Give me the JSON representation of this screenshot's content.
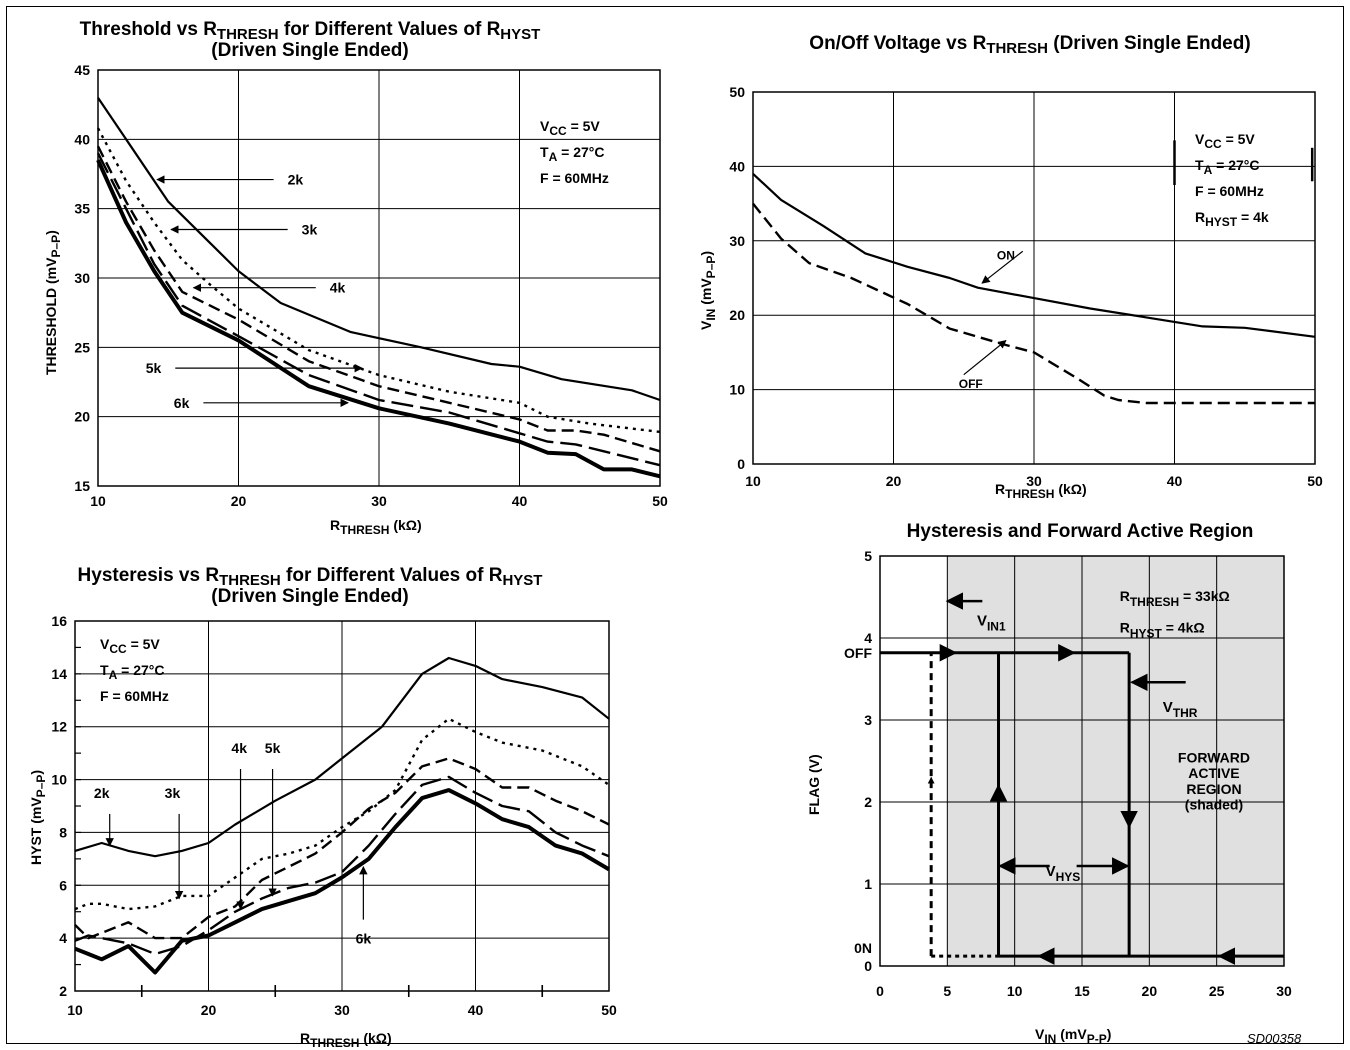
{
  "chart_data": [
    {
      "id": "c1",
      "type": "line",
      "title_line1_pre": "Threshold vs R",
      "title_line1_sub1": "THRESH",
      "title_line1_mid": " for Different Values of R",
      "title_line1_sub2": "HYST",
      "title_line2": "(Driven Single Ended)",
      "xlabel_main": "R",
      "xlabel_sub": "THRESH",
      "xlabel_unit": " (kΩ)",
      "ylabel": "THRESHOLD  (mV",
      "ylabel_sub": "P–P",
      "ylabel_end": ")",
      "xlim": [
        10,
        50
      ],
      "ylim": [
        15,
        45
      ],
      "x_ticks": [
        "10",
        "20",
        "30",
        "40",
        "50"
      ],
      "y_ticks": [
        "15",
        "20",
        "25",
        "30",
        "35",
        "40",
        "45"
      ],
      "x_tick_values": [
        10,
        20,
        30,
        40,
        50
      ],
      "y_tick_values": [
        15,
        20,
        25,
        30,
        35,
        40,
        45
      ],
      "grid": true,
      "conditions": [
        "V",
        "T",
        "F = 60MHz"
      ],
      "conditions_sub": [
        "CC",
        "A",
        ""
      ],
      "conditions_rest": [
        " = 5V",
        " = 27°C",
        ""
      ],
      "series": [
        {
          "name": "2k",
          "style": "solid",
          "x": [
            10,
            12,
            15,
            18,
            20,
            23,
            28,
            33,
            38,
            40,
            43,
            48,
            50
          ],
          "y": [
            43,
            40,
            35.5,
            32.5,
            30.5,
            28.2,
            26.1,
            25,
            23.8,
            23.6,
            22.7,
            21.9,
            21.2
          ]
        },
        {
          "name": "3k",
          "style": "dotted",
          "x": [
            10,
            12,
            14,
            16,
            18,
            20,
            25,
            30,
            35,
            40,
            42,
            45,
            50
          ],
          "y": [
            40.8,
            37,
            34,
            31.3,
            29.5,
            27.8,
            24.8,
            23,
            21.8,
            21,
            20,
            19.5,
            18.9
          ]
        },
        {
          "name": "4k",
          "style": "dashed",
          "x": [
            10,
            12,
            14,
            16,
            20,
            25,
            30,
            35,
            40,
            42,
            44,
            46,
            50
          ],
          "y": [
            39.5,
            35.5,
            32,
            29,
            27,
            24,
            22.2,
            21,
            19.8,
            19,
            19,
            18.7,
            17.5
          ]
        },
        {
          "name": "5k",
          "style": "longdash",
          "x": [
            10,
            12,
            14,
            16,
            20,
            25,
            30,
            35,
            40,
            42,
            44,
            46,
            50
          ],
          "y": [
            39,
            35,
            31,
            28,
            25.8,
            23,
            21.2,
            20.3,
            18.8,
            18.2,
            18,
            17.5,
            16.5
          ]
        },
        {
          "name": "6k",
          "style": "thick",
          "x": [
            10,
            12,
            14,
            16,
            20,
            25,
            30,
            35,
            40,
            42,
            44,
            46,
            48,
            50
          ],
          "y": [
            38.5,
            34,
            30.5,
            27.5,
            25.5,
            22.2,
            20.6,
            19.5,
            18.2,
            17.4,
            17.3,
            16.2,
            16.2,
            15.7
          ]
        }
      ],
      "labels": [
        {
          "text": "2k",
          "x": 15,
          "y": 37.5,
          "tip_x": 14.2,
          "tip_y": 37.1,
          "from_x": 22.5,
          "from_y": 37.1
        },
        {
          "text": "3k",
          "x": 15.5,
          "y": 33.5,
          "tip_x": 15.2,
          "tip_y": 33.5,
          "from_x": 23.5,
          "from_y": 33.5
        },
        {
          "text": "4k",
          "x": 17,
          "y": 29.2,
          "tip_x": 16.8,
          "tip_y": 29.3,
          "from_x": 25.5,
          "from_y": 29.3
        },
        {
          "text": "5k",
          "x": 14,
          "y": 22.5,
          "tip_x": 28.8,
          "tip_y": 23.5,
          "from_x": 15.5,
          "from_y": 23.5
        },
        {
          "text": "6k",
          "x": 16,
          "y": 20.7,
          "tip_x": 27.8,
          "tip_y": 21,
          "from_x": 17.5,
          "from_y": 21
        }
      ]
    },
    {
      "id": "c2",
      "type": "line",
      "title_pre": "On/Off Voltage vs R",
      "title_sub": "THRESH",
      "title_post": " (Driven Single Ended)",
      "xlabel_main": "R",
      "xlabel_sub": "THRESH",
      "xlabel_unit": " (kΩ)",
      "ylabel": "V",
      "ylabel_sub": "IN",
      "ylabel_end": " (mV",
      "ylabel_sub2": "P–P",
      "ylabel_end2": ")",
      "xlim": [
        10,
        50
      ],
      "ylim": [
        0,
        50
      ],
      "x_ticks": [
        "10",
        "20",
        "30",
        "40",
        "50"
      ],
      "y_ticks": [
        "0",
        "10",
        "20",
        "30",
        "40",
        "50"
      ],
      "x_tick_values": [
        10,
        20,
        30,
        40,
        50
      ],
      "y_tick_values": [
        0,
        10,
        20,
        30,
        40,
        50
      ],
      "grid": true,
      "conditions": [
        "V",
        "T",
        "F = 60MHz",
        "R"
      ],
      "conditions_sub": [
        "CC",
        "A",
        "",
        "HYST"
      ],
      "conditions_rest": [
        " = 5V",
        " = 27°C",
        "",
        " = 4k"
      ],
      "series": [
        {
          "name": "ON",
          "style": "solid",
          "x": [
            10,
            12,
            15,
            18,
            21,
            24,
            26,
            30,
            34,
            38,
            42,
            45,
            50
          ],
          "y": [
            39,
            35.5,
            32,
            28.3,
            26.5,
            25,
            23.7,
            22.3,
            20.9,
            19.7,
            18.5,
            18.3,
            17.1
          ]
        },
        {
          "name": "OFF",
          "style": "dashed",
          "x": [
            10,
            12,
            14,
            17,
            21,
            24,
            28,
            30,
            33,
            35,
            36,
            38,
            40,
            45,
            50
          ],
          "y": [
            35,
            30.3,
            27,
            25,
            21.5,
            18.2,
            16,
            15,
            11.6,
            9.2,
            8.6,
            8.2,
            8.2,
            8.2,
            8.2
          ]
        }
      ],
      "labels": [
        {
          "text": "ON",
          "x": 28,
          "y": 27.5,
          "tip_x": 26.3,
          "tip_y": 24.3,
          "from_x": 29.2,
          "from_y": 28.6
        },
        {
          "text": "OFF",
          "x": 25.5,
          "y": 10.2,
          "tip_x": 28,
          "tip_y": 16.6,
          "from_x": 25,
          "from_y": 12
        }
      ]
    },
    {
      "id": "c3",
      "type": "line",
      "title_line1_pre": "Hysteresis vs R",
      "title_line1_sub1": "THRESH",
      "title_line1_mid": " for Different Values of R",
      "title_line1_sub2": "HYST",
      "title_line2": "(Driven Single Ended)",
      "xlabel_main": "R",
      "xlabel_sub": "THRESH",
      "xlabel_unit": " (kΩ)",
      "ylabel": "HYST (mV",
      "ylabel_sub": "P–P",
      "ylabel_end": ")",
      "xlim": [
        10,
        50
      ],
      "ylim": [
        2,
        16
      ],
      "x_ticks": [
        "10",
        "20",
        "30",
        "40",
        "50"
      ],
      "y_ticks": [
        "2",
        "4",
        "6",
        "8",
        "10",
        "12",
        "14",
        "16"
      ],
      "x_tick_values": [
        10,
        20,
        30,
        40,
        50
      ],
      "y_tick_values": [
        2,
        4,
        6,
        8,
        10,
        12,
        14,
        16
      ],
      "grid": true,
      "conditions": [
        "V",
        "T",
        "F = 60MHz"
      ],
      "conditions_sub": [
        "CC",
        "A",
        ""
      ],
      "conditions_rest": [
        " = 5V",
        " = 27°C",
        ""
      ],
      "series": [
        {
          "name": "2k",
          "style": "solid",
          "x": [
            10,
            12,
            14,
            16,
            18,
            20,
            22,
            25,
            28,
            30,
            33,
            36,
            38,
            40,
            42,
            45,
            48,
            50
          ],
          "y": [
            7.3,
            7.6,
            7.3,
            7.1,
            7.3,
            7.6,
            8.3,
            9.2,
            10,
            10.8,
            12,
            14,
            14.6,
            14.3,
            13.8,
            13.5,
            13.1,
            12.3
          ]
        },
        {
          "name": "3k",
          "style": "dotted",
          "x": [
            10,
            11,
            12,
            14,
            16,
            18,
            20,
            22,
            24,
            26,
            28,
            30,
            32,
            34,
            36,
            38,
            40,
            42,
            45,
            48,
            50
          ],
          "y": [
            5.1,
            5.3,
            5.3,
            5.1,
            5.2,
            5.6,
            5.6,
            6.3,
            7,
            7.2,
            7.5,
            8.2,
            8.8,
            9.6,
            11.5,
            12.3,
            11.8,
            11.4,
            11.1,
            10.5,
            9.8
          ]
        },
        {
          "name": "4k",
          "style": "dashed",
          "x": [
            10,
            11,
            12,
            14,
            16,
            18,
            20,
            22,
            24,
            26,
            28,
            30,
            32,
            34,
            36,
            38,
            40,
            42,
            44,
            46,
            48,
            50
          ],
          "y": [
            4.5,
            4,
            4.2,
            4.6,
            4,
            4,
            4.8,
            5.2,
            6.2,
            6.7,
            7.2,
            8,
            8.9,
            9.5,
            10.5,
            10.8,
            10.4,
            9.7,
            9.7,
            9.2,
            8.8,
            8.3
          ]
        },
        {
          "name": "5k",
          "style": "longdash",
          "x": [
            10,
            11,
            12,
            14,
            16,
            18,
            20,
            22,
            24,
            26,
            28,
            30,
            32,
            34,
            36,
            38,
            40,
            42,
            44,
            46,
            48,
            50
          ],
          "y": [
            3.9,
            4.1,
            4,
            3.8,
            3.4,
            3.7,
            4.3,
            5,
            5.5,
            5.9,
            6.1,
            6.5,
            7.5,
            8.7,
            9.8,
            10.1,
            9.5,
            9,
            8.8,
            8,
            7.5,
            7.1
          ]
        },
        {
          "name": "6k",
          "style": "thick",
          "x": [
            10,
            11,
            12,
            14,
            16,
            18,
            20,
            22,
            24,
            26,
            28,
            30,
            32,
            34,
            36,
            38,
            40,
            42,
            44,
            46,
            48,
            50
          ],
          "y": [
            3.6,
            3.4,
            3.2,
            3.7,
            2.7,
            3.9,
            4.1,
            4.6,
            5.1,
            5.4,
            5.7,
            6.3,
            7,
            8.2,
            9.3,
            9.6,
            9.1,
            8.5,
            8.2,
            7.5,
            7.2,
            6.6
          ]
        }
      ],
      "labels": [
        {
          "text": "2k",
          "x": 12,
          "y": 9.3,
          "tip_x": 12.6,
          "tip_y": 7.5,
          "from_x": 12.6,
          "from_y": 8.7
        },
        {
          "text": "3k",
          "x": 17.3,
          "y": 9.3,
          "tip_x": 17.8,
          "tip_y": 5.5,
          "from_x": 17.8,
          "from_y": 8.7
        },
        {
          "text": "4k",
          "x": 22.3,
          "y": 11,
          "tip_x": 22.4,
          "tip_y": 5.1,
          "from_x": 22.4,
          "from_y": 10.4
        },
        {
          "text": "5k",
          "x": 24.8,
          "y": 11,
          "tip_x": 24.8,
          "tip_y": 5.6,
          "from_x": 24.8,
          "from_y": 10.4
        },
        {
          "text": "6k",
          "x": 31.6,
          "y": 3.8,
          "tip_x": 31.6,
          "tip_y": 6.7,
          "from_x": 31.6,
          "from_y": 4.7
        }
      ]
    },
    {
      "id": "c4",
      "type": "line",
      "title": "Hysteresis and Forward Active Region",
      "xlabel_main": "V",
      "xlabel_sub": "IN",
      "xlabel_unit": "  (mV",
      "xlabel_sub2": "P-P",
      "xlabel_end": ")",
      "ylabel": "FLAG  (V)",
      "xlim": [
        0,
        30
      ],
      "ylim": [
        0,
        5
      ],
      "x_ticks": [
        "0",
        "5",
        "10",
        "15",
        "20",
        "25",
        "30"
      ],
      "y_ticks": [
        "0",
        "1",
        "2",
        "3",
        "4",
        "5"
      ],
      "x_tick_values": [
        0,
        5,
        10,
        15,
        20,
        25,
        30
      ],
      "y_tick_values": [
        0,
        1,
        2,
        3,
        4,
        5
      ],
      "y_side_labels": [
        "OFF",
        "0N"
      ],
      "grid": true,
      "shaded_from_x": 5,
      "shade_color": "#e0e0e0",
      "conditions": [
        "R",
        "R"
      ],
      "conditions_sub": [
        "THRESH",
        "HYST"
      ],
      "conditions_rest": [
        " = 33kΩ",
        "  =  4kΩ"
      ],
      "region_label": [
        "FORWARD",
        "ACTIVE",
        "REGION",
        "(shaded)"
      ],
      "off_level": 3.82,
      "on_level": 0.12,
      "vin1": 3.8,
      "v_low": 8.8,
      "v_thr": 18.5,
      "annotations": {
        "vin1_main": "V",
        "vin1_sub": "IN1",
        "vthr_main": "V",
        "vthr_sub": "THR",
        "vhys_main": "V",
        "vhys_sub": "HYS"
      },
      "figure_code": "SD00358"
    }
  ]
}
